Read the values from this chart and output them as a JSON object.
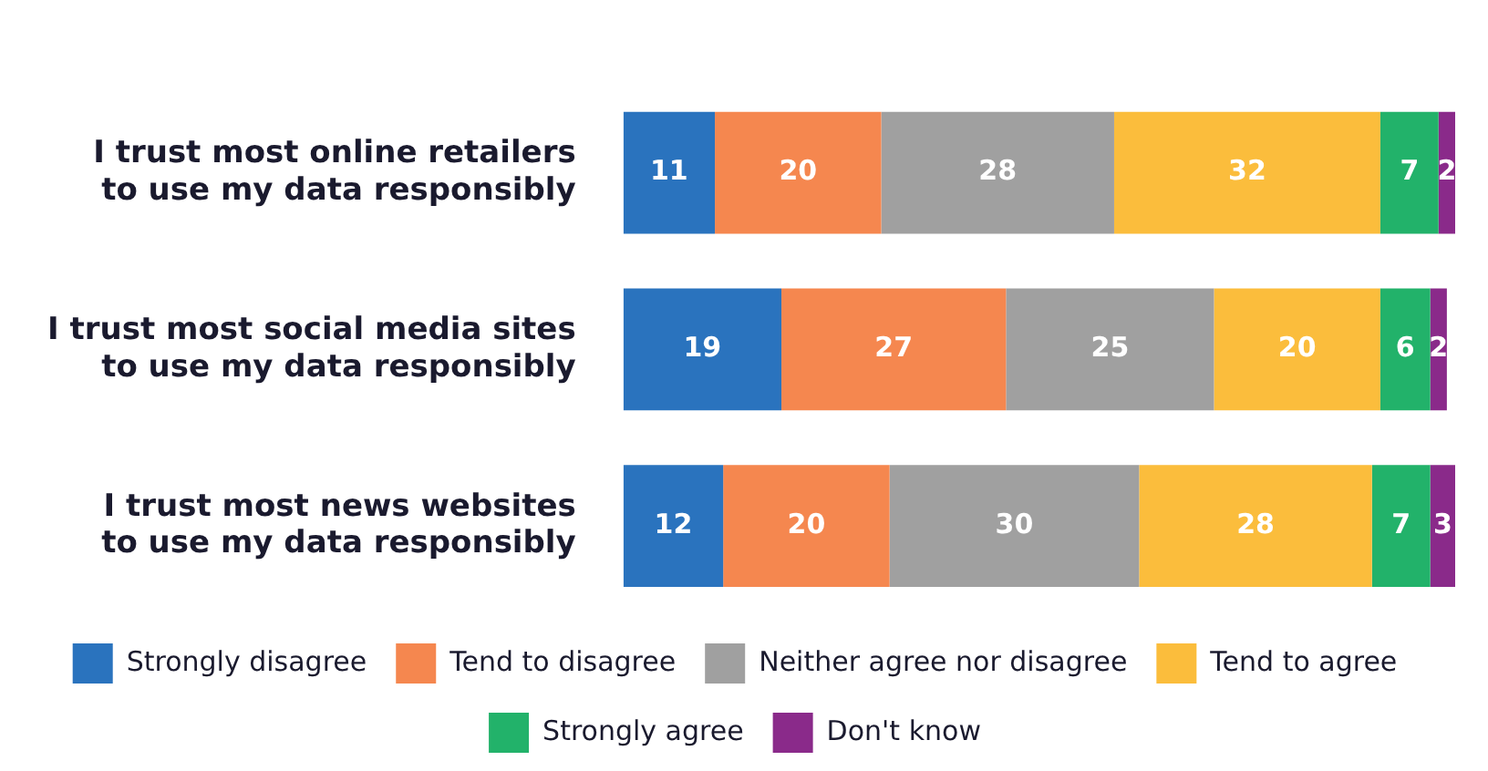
{
  "chart_data": {
    "type": "bar",
    "orientation": "horizontal",
    "stacked": true,
    "data_labels": true,
    "legend": "bottom",
    "xlim": [
      0,
      100
    ],
    "categories": [
      "I trust most online retailers to use my data responsibly",
      "I trust most social media sites to use my data responsibly",
      "I trust most news websites to use my data responsibly"
    ],
    "series": [
      {
        "name": "Strongly disagree",
        "color": "#2a73be",
        "values": [
          11,
          19,
          12
        ]
      },
      {
        "name": "Tend to disagree",
        "color": "#f5874f",
        "values": [
          20,
          27,
          20
        ]
      },
      {
        "name": "Neither agree nor disagree",
        "color": "#a0a0a0",
        "values": [
          28,
          25,
          30
        ]
      },
      {
        "name": "Tend to agree",
        "color": "#fbbd3c",
        "values": [
          32,
          20,
          28
        ]
      },
      {
        "name": "Strongly agree",
        "color": "#22b26a",
        "values": [
          7,
          6,
          7
        ]
      },
      {
        "name": "Don't know",
        "color": "#8a2a8a",
        "values": [
          2,
          2,
          3
        ]
      }
    ]
  }
}
